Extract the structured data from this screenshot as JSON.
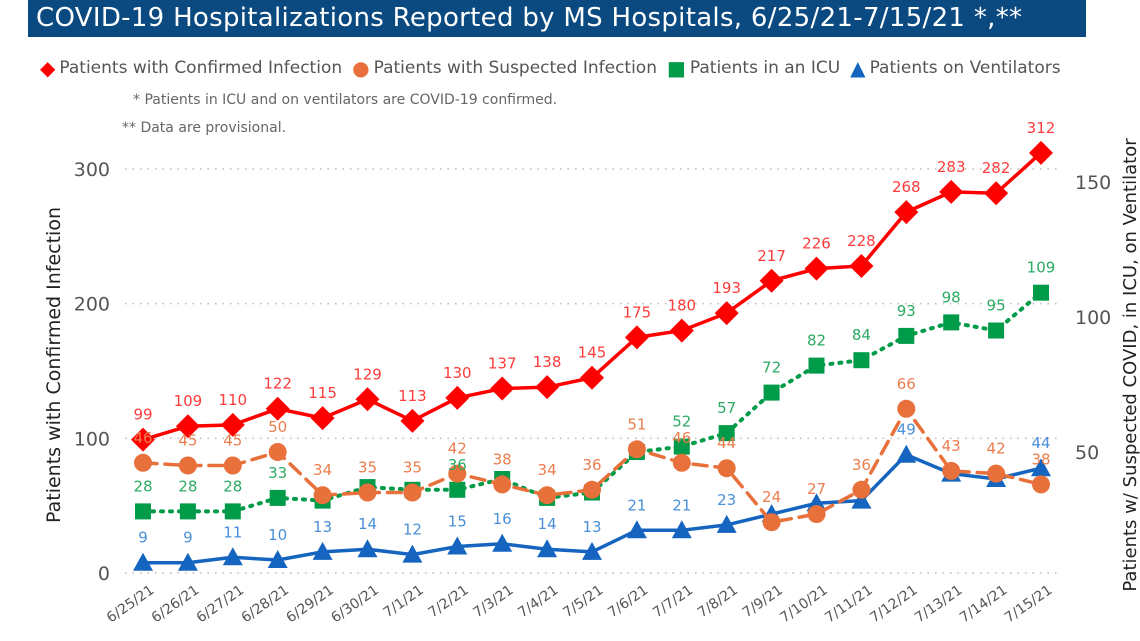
{
  "header": {
    "title": "COVID-19 Hospitalizations Reported by MS Hospitals, 6/25/21-7/15/21 *,**"
  },
  "notes": [
    "* Patients in ICU and on ventilators are COVID-19 confirmed.",
    "** Data are provisional."
  ],
  "chart_data": {
    "type": "line",
    "title": "COVID-19 Hospitalizations Reported by MS Hospitals, 6/25/21-7/15/21 *,**",
    "ylabel": "Patients with Confirmed Infection",
    "y2label": "Patients w/ Suspected COVID, in ICU, on Ventilator",
    "ylim": [
      0,
      300
    ],
    "y2lim": [
      0,
      150
    ],
    "yticks": [
      0,
      100,
      200,
      300
    ],
    "y2ticks": [
      50,
      100,
      150
    ],
    "grid": true,
    "legend_position": "top",
    "categories": [
      "6/25/21",
      "6/26/21",
      "6/27/21",
      "6/28/21",
      "6/29/21",
      "6/30/21",
      "7/1/21",
      "7/2/21",
      "7/3/21",
      "7/4/21",
      "7/5/21",
      "7/6/21",
      "7/7/21",
      "7/8/21",
      "7/9/21",
      "7/10/21",
      "7/11/21",
      "7/12/21",
      "7/13/21",
      "7/14/21",
      "7/15/21"
    ],
    "series": [
      {
        "name": "Patients with Confirmed Infection",
        "axis": "left",
        "color": "#FF0000",
        "marker": "diamond",
        "dash": "solid",
        "values": [
          99,
          109,
          110,
          122,
          115,
          129,
          113,
          130,
          137,
          138,
          145,
          175,
          180,
          193,
          217,
          226,
          228,
          268,
          283,
          282,
          312
        ],
        "labels": [
          99,
          109,
          110,
          122,
          115,
          129,
          113,
          130,
          137,
          138,
          145,
          175,
          180,
          193,
          217,
          226,
          228,
          268,
          283,
          282,
          312
        ]
      },
      {
        "name": "Patients with Suspected Infection",
        "axis": "right",
        "color": "#E8703A",
        "marker": "circle",
        "dash": "dashed",
        "values": [
          46,
          45,
          45,
          50,
          34,
          35,
          35,
          42,
          38,
          34,
          36,
          51,
          46,
          44,
          24,
          27,
          36,
          66,
          43,
          42,
          38
        ],
        "labels": [
          46,
          45,
          45,
          50,
          34,
          35,
          35,
          42,
          38,
          34,
          36,
          51,
          46,
          44,
          24,
          27,
          36,
          66,
          43,
          42,
          38
        ]
      },
      {
        "name": "Patients in an ICU",
        "axis": "right",
        "color": "#009B48",
        "marker": "square",
        "dash": "dotted",
        "values": [
          28,
          28,
          28,
          33,
          32,
          37,
          36,
          36,
          40,
          33,
          35,
          50,
          52,
          57,
          72,
          82,
          84,
          93,
          98,
          95,
          109
        ],
        "labels": [
          28,
          28,
          28,
          33,
          null,
          null,
          null,
          36,
          null,
          null,
          null,
          null,
          52,
          57,
          72,
          82,
          84,
          93,
          98,
          95,
          109
        ]
      },
      {
        "name": "Patients on Ventilators",
        "axis": "right",
        "color": "#1565C0",
        "marker": "triangle",
        "dash": "solid",
        "values": [
          9,
          9,
          11,
          10,
          13,
          14,
          12,
          15,
          16,
          14,
          13,
          21,
          21,
          23,
          27,
          31,
          32,
          49,
          42,
          40,
          44
        ],
        "labels": [
          9,
          9,
          11,
          10,
          13,
          14,
          12,
          15,
          16,
          14,
          13,
          21,
          21,
          23,
          null,
          null,
          null,
          49,
          null,
          null,
          44
        ]
      }
    ]
  }
}
